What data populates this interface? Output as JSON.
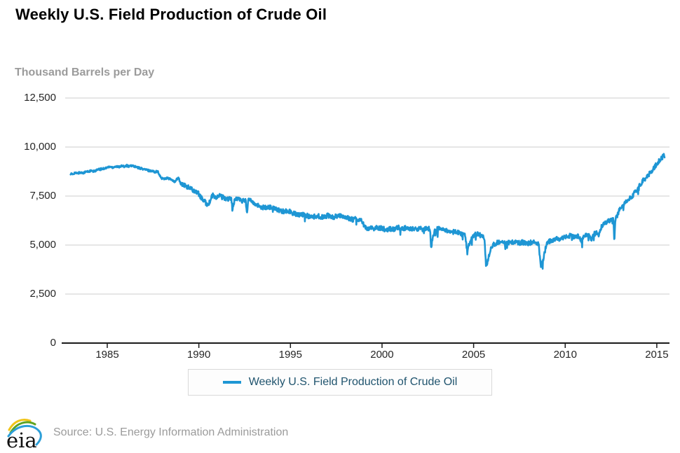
{
  "header": {
    "title": "Weekly U.S. Field Production of Crude Oil"
  },
  "y_axis_title": "Thousand Barrels per Day",
  "legend": {
    "label": "Weekly U.S. Field Production of Crude Oil"
  },
  "footer": {
    "logo_text": "eia",
    "source_text": "Source: U.S. Energy Information Administration"
  },
  "colors": {
    "line": "#1e96d4",
    "grid": "#cccccc",
    "axis": "#1a1a1a",
    "tick_text": "#262626",
    "muted_text": "#9b9b9b",
    "legend_text": "#20546e",
    "logo_yellow": "#f0c419",
    "logo_green": "#5fa321",
    "logo_blue": "#2d9fd8"
  },
  "chart_data": {
    "type": "line",
    "title": "Weekly U.S. Field Production of Crude Oil",
    "ylabel": "Thousand Barrels per Day",
    "xlabel": "",
    "units": "Thousand Barrels per Day",
    "x_ticks": [
      1985,
      1990,
      1995,
      2000,
      2005,
      2010,
      2015
    ],
    "y_ticks": [
      {
        "value": 0,
        "label": "0"
      },
      {
        "value": 2500,
        "label": "2,500"
      },
      {
        "value": 5000,
        "label": "5,000"
      },
      {
        "value": 7500,
        "label": "7,500"
      },
      {
        "value": 10000,
        "label": "10,000"
      },
      {
        "value": 12500,
        "label": "12,500"
      }
    ],
    "xlim": [
      1982.7,
      2015.7
    ],
    "ylim": [
      0,
      12500
    ],
    "grid": "horizontal-only",
    "legend_position": "bottom-center",
    "series": [
      {
        "name": "Weekly U.S. Field Production of Crude Oil",
        "points": [
          [
            1983.0,
            8650
          ],
          [
            1983.1,
            8600
          ],
          [
            1983.2,
            8680
          ],
          [
            1983.35,
            8650
          ],
          [
            1983.5,
            8700
          ],
          [
            1983.65,
            8680
          ],
          [
            1983.8,
            8730
          ],
          [
            1983.95,
            8750
          ],
          [
            1984.1,
            8780
          ],
          [
            1984.25,
            8750
          ],
          [
            1984.4,
            8820
          ],
          [
            1984.55,
            8850
          ],
          [
            1984.7,
            8880
          ],
          [
            1984.85,
            8920
          ],
          [
            1985.0,
            8950
          ],
          [
            1985.15,
            9000
          ],
          [
            1985.3,
            8960
          ],
          [
            1985.45,
            9020
          ],
          [
            1985.6,
            8980
          ],
          [
            1985.75,
            9040
          ],
          [
            1985.9,
            9000
          ],
          [
            1986.05,
            9060
          ],
          [
            1986.2,
            9010
          ],
          [
            1986.35,
            9060
          ],
          [
            1986.5,
            9000
          ],
          [
            1986.65,
            8950
          ],
          [
            1986.8,
            8920
          ],
          [
            1987.0,
            8870
          ],
          [
            1987.2,
            8820
          ],
          [
            1987.4,
            8780
          ],
          [
            1987.6,
            8740
          ],
          [
            1987.75,
            8760
          ],
          [
            1987.85,
            8550
          ],
          [
            1987.95,
            8420
          ],
          [
            1988.1,
            8380
          ],
          [
            1988.25,
            8420
          ],
          [
            1988.4,
            8380
          ],
          [
            1988.55,
            8300
          ],
          [
            1988.65,
            8220
          ],
          [
            1988.8,
            8350
          ],
          [
            1988.88,
            8450
          ],
          [
            1989.0,
            8150
          ],
          [
            1989.15,
            8050
          ],
          [
            1989.3,
            8000
          ],
          [
            1989.45,
            7930
          ],
          [
            1989.6,
            7850
          ],
          [
            1989.75,
            7780
          ],
          [
            1989.9,
            7700
          ],
          [
            1990.0,
            7600
          ],
          [
            1990.15,
            7380
          ],
          [
            1990.3,
            7230
          ],
          [
            1990.45,
            7080
          ],
          [
            1990.6,
            7180
          ],
          [
            1990.7,
            7480
          ],
          [
            1990.8,
            7550
          ],
          [
            1990.9,
            7380
          ],
          [
            1991.0,
            7450
          ],
          [
            1991.15,
            7520
          ],
          [
            1991.3,
            7430
          ],
          [
            1991.45,
            7380
          ],
          [
            1991.6,
            7330
          ],
          [
            1991.75,
            7360
          ],
          [
            1991.88,
            7000
          ],
          [
            1991.95,
            7300
          ],
          [
            1992.1,
            7380
          ],
          [
            1992.25,
            7320
          ],
          [
            1992.4,
            7260
          ],
          [
            1992.55,
            7300
          ],
          [
            1992.62,
            6650
          ],
          [
            1992.7,
            7280
          ],
          [
            1992.85,
            7300
          ],
          [
            1993.0,
            7180
          ],
          [
            1993.15,
            7050
          ],
          [
            1993.3,
            6980
          ],
          [
            1993.45,
            6940
          ],
          [
            1993.6,
            6900
          ],
          [
            1993.75,
            6950
          ],
          [
            1993.9,
            6920
          ],
          [
            1994.05,
            6930
          ],
          [
            1994.2,
            6860
          ],
          [
            1994.35,
            6790
          ],
          [
            1994.5,
            6750
          ],
          [
            1994.65,
            6700
          ],
          [
            1994.8,
            6760
          ],
          [
            1994.95,
            6720
          ],
          [
            1995.1,
            6650
          ],
          [
            1995.25,
            6600
          ],
          [
            1995.4,
            6560
          ],
          [
            1995.55,
            6520
          ],
          [
            1995.7,
            6560
          ],
          [
            1995.85,
            6530
          ],
          [
            1996.0,
            6470
          ],
          [
            1996.15,
            6420
          ],
          [
            1996.3,
            6460
          ],
          [
            1996.45,
            6500
          ],
          [
            1996.6,
            6460
          ],
          [
            1996.75,
            6430
          ],
          [
            1996.9,
            6470
          ],
          [
            1997.05,
            6510
          ],
          [
            1997.2,
            6460
          ],
          [
            1997.35,
            6420
          ],
          [
            1997.5,
            6470
          ],
          [
            1997.65,
            6510
          ],
          [
            1997.8,
            6470
          ],
          [
            1997.95,
            6440
          ],
          [
            1998.1,
            6400
          ],
          [
            1998.25,
            6350
          ],
          [
            1998.4,
            6300
          ],
          [
            1998.55,
            6320
          ],
          [
            1998.7,
            6280
          ],
          [
            1998.85,
            6250
          ],
          [
            1999.0,
            6150
          ],
          [
            1999.08,
            5900
          ],
          [
            1999.2,
            5830
          ],
          [
            1999.35,
            5870
          ],
          [
            1999.5,
            5820
          ],
          [
            1999.65,
            5880
          ],
          [
            1999.8,
            5840
          ],
          [
            1999.95,
            5870
          ],
          [
            2000.1,
            5820
          ],
          [
            2000.25,
            5780
          ],
          [
            2000.4,
            5830
          ],
          [
            2000.55,
            5790
          ],
          [
            2000.7,
            5840
          ],
          [
            2000.85,
            5880
          ],
          [
            2001.0,
            5890
          ],
          [
            2001.15,
            5850
          ],
          [
            2001.3,
            5880
          ],
          [
            2001.45,
            5830
          ],
          [
            2001.6,
            5800
          ],
          [
            2001.75,
            5850
          ],
          [
            2001.9,
            5820
          ],
          [
            2002.05,
            5850
          ],
          [
            2002.2,
            5810
          ],
          [
            2002.35,
            5840
          ],
          [
            2002.5,
            5870
          ],
          [
            2002.62,
            5780
          ],
          [
            2002.68,
            4780
          ],
          [
            2002.76,
            5400
          ],
          [
            2002.9,
            5720
          ],
          [
            2003.05,
            5830
          ],
          [
            2003.2,
            5790
          ],
          [
            2003.35,
            5760
          ],
          [
            2003.5,
            5720
          ],
          [
            2003.65,
            5680
          ],
          [
            2003.8,
            5640
          ],
          [
            2003.95,
            5690
          ],
          [
            2004.1,
            5650
          ],
          [
            2004.25,
            5580
          ],
          [
            2004.4,
            5520
          ],
          [
            2004.55,
            5460
          ],
          [
            2004.65,
            4600
          ],
          [
            2004.75,
            5050
          ],
          [
            2004.9,
            5320
          ],
          [
            2005.0,
            5500
          ],
          [
            2005.15,
            5560
          ],
          [
            2005.3,
            5520
          ],
          [
            2005.45,
            5470
          ],
          [
            2005.6,
            5300
          ],
          [
            2005.68,
            3830
          ],
          [
            2005.78,
            4250
          ],
          [
            2005.9,
            4650
          ],
          [
            2006.0,
            4950
          ],
          [
            2006.15,
            5060
          ],
          [
            2006.3,
            5120
          ],
          [
            2006.45,
            5160
          ],
          [
            2006.6,
            5120
          ],
          [
            2006.75,
            5080
          ],
          [
            2006.9,
            5120
          ],
          [
            2007.05,
            5160
          ],
          [
            2007.2,
            5110
          ],
          [
            2007.35,
            5150
          ],
          [
            2007.5,
            5100
          ],
          [
            2007.65,
            5140
          ],
          [
            2007.8,
            5110
          ],
          [
            2007.95,
            5090
          ],
          [
            2008.1,
            5120
          ],
          [
            2008.25,
            5160
          ],
          [
            2008.4,
            5110
          ],
          [
            2008.55,
            5080
          ],
          [
            2008.66,
            3900
          ],
          [
            2008.72,
            4050
          ],
          [
            2008.82,
            4350
          ],
          [
            2008.95,
            4950
          ],
          [
            2009.1,
            5180
          ],
          [
            2009.25,
            5240
          ],
          [
            2009.4,
            5290
          ],
          [
            2009.55,
            5330
          ],
          [
            2009.7,
            5300
          ],
          [
            2009.85,
            5360
          ],
          [
            2010.0,
            5380
          ],
          [
            2010.15,
            5440
          ],
          [
            2010.3,
            5480
          ],
          [
            2010.45,
            5420
          ],
          [
            2010.6,
            5470
          ],
          [
            2010.75,
            5430
          ],
          [
            2010.9,
            5180
          ],
          [
            2011.0,
            5480
          ],
          [
            2011.15,
            5540
          ],
          [
            2011.3,
            5500
          ],
          [
            2011.45,
            5260
          ],
          [
            2011.55,
            5560
          ],
          [
            2011.7,
            5610
          ],
          [
            2011.8,
            5450
          ],
          [
            2011.9,
            5750
          ],
          [
            2012.0,
            5950
          ],
          [
            2012.12,
            6080
          ],
          [
            2012.25,
            6170
          ],
          [
            2012.4,
            6250
          ],
          [
            2012.55,
            6300
          ],
          [
            2012.64,
            6250
          ],
          [
            2012.68,
            5200
          ],
          [
            2012.74,
            6320
          ],
          [
            2012.87,
            6550
          ],
          [
            2013.0,
            6900
          ],
          [
            2013.12,
            7020
          ],
          [
            2013.25,
            7130
          ],
          [
            2013.4,
            7270
          ],
          [
            2013.55,
            7400
          ],
          [
            2013.7,
            7550
          ],
          [
            2013.85,
            7740
          ],
          [
            2014.0,
            7980
          ],
          [
            2014.12,
            8120
          ],
          [
            2014.25,
            8280
          ],
          [
            2014.4,
            8430
          ],
          [
            2014.55,
            8580
          ],
          [
            2014.7,
            8750
          ],
          [
            2014.85,
            8950
          ],
          [
            2015.0,
            9140
          ],
          [
            2015.1,
            9260
          ],
          [
            2015.2,
            9370
          ],
          [
            2015.3,
            9440
          ],
          [
            2015.38,
            9600
          ],
          [
            2015.44,
            9500
          ]
        ]
      }
    ]
  }
}
